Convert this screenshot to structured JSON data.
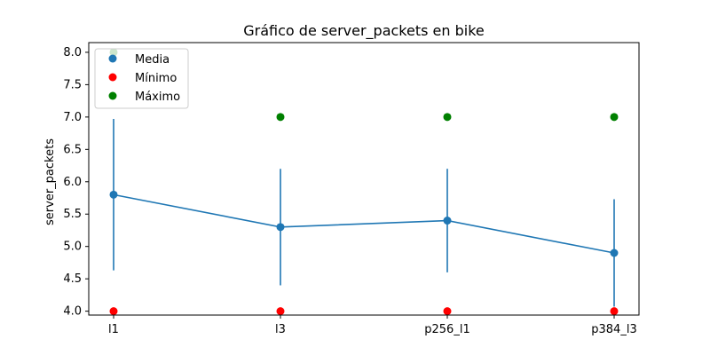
{
  "chart_data": {
    "type": "line",
    "title": "Gráfico de server_packets en bike",
    "xlabel": "",
    "ylabel": "server_packets",
    "categories": [
      "l1",
      "l3",
      "p256_l1",
      "p384_l3"
    ],
    "ylim": [
      3.94,
      8.15
    ],
    "yticks": [
      "4.0",
      "4.5",
      "5.0",
      "5.5",
      "6.0",
      "6.5",
      "7.0",
      "7.5",
      "8.0"
    ],
    "grid": false,
    "legend_position": "top-left",
    "series": [
      {
        "name": "Media",
        "type": "line-errorbar",
        "color": "#1f77b4",
        "values": [
          5.8,
          5.3,
          5.4,
          4.9
        ],
        "error": [
          1.17,
          0.9,
          0.8,
          0.83
        ]
      },
      {
        "name": "Mínimo",
        "type": "scatter",
        "color": "#ff0000",
        "values": [
          4.0,
          4.0,
          4.0,
          4.0
        ]
      },
      {
        "name": "Máximo",
        "type": "scatter",
        "color": "#008000",
        "values": [
          8.0,
          7.0,
          7.0,
          7.0
        ]
      }
    ]
  }
}
